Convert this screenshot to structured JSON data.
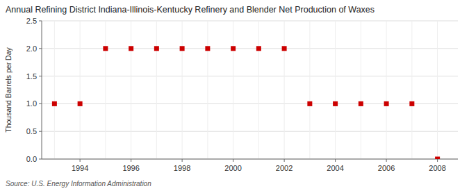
{
  "chart_data": {
    "type": "scatter",
    "title": "Annual Refining District Indiana-Illinois-Kentucky Refinery and Blender Net Production of Waxes",
    "y_label": "Thousand Barrels per Day",
    "source": "Source: U.S. Energy Information Administration",
    "x": [
      1993,
      1994,
      1995,
      1996,
      1997,
      1998,
      1999,
      2000,
      2001,
      2002,
      2003,
      2004,
      2005,
      2006,
      2007,
      2008
    ],
    "values": [
      1.0,
      1.0,
      2.0,
      2.0,
      2.0,
      2.0,
      2.0,
      2.0,
      2.0,
      2.0,
      1.0,
      1.0,
      1.0,
      1.0,
      1.0,
      0.0
    ],
    "color": "#cc0000",
    "marker": "square",
    "xlim": [
      1992.5,
      2008.8
    ],
    "ylim": [
      0.0,
      2.5
    ],
    "xticks": [
      1994,
      1996,
      1998,
      2000,
      2002,
      2004,
      2006,
      2008
    ],
    "yticks": [
      {
        "value": 0.0,
        "label": "0.0"
      },
      {
        "value": 0.5,
        "label": "0.5"
      },
      {
        "value": 1.0,
        "label": "1.0"
      },
      {
        "value": 1.5,
        "label": "1.5"
      },
      {
        "value": 2.0,
        "label": "2.0"
      },
      {
        "value": 2.5,
        "label": "2.5"
      }
    ],
    "grid": true
  }
}
